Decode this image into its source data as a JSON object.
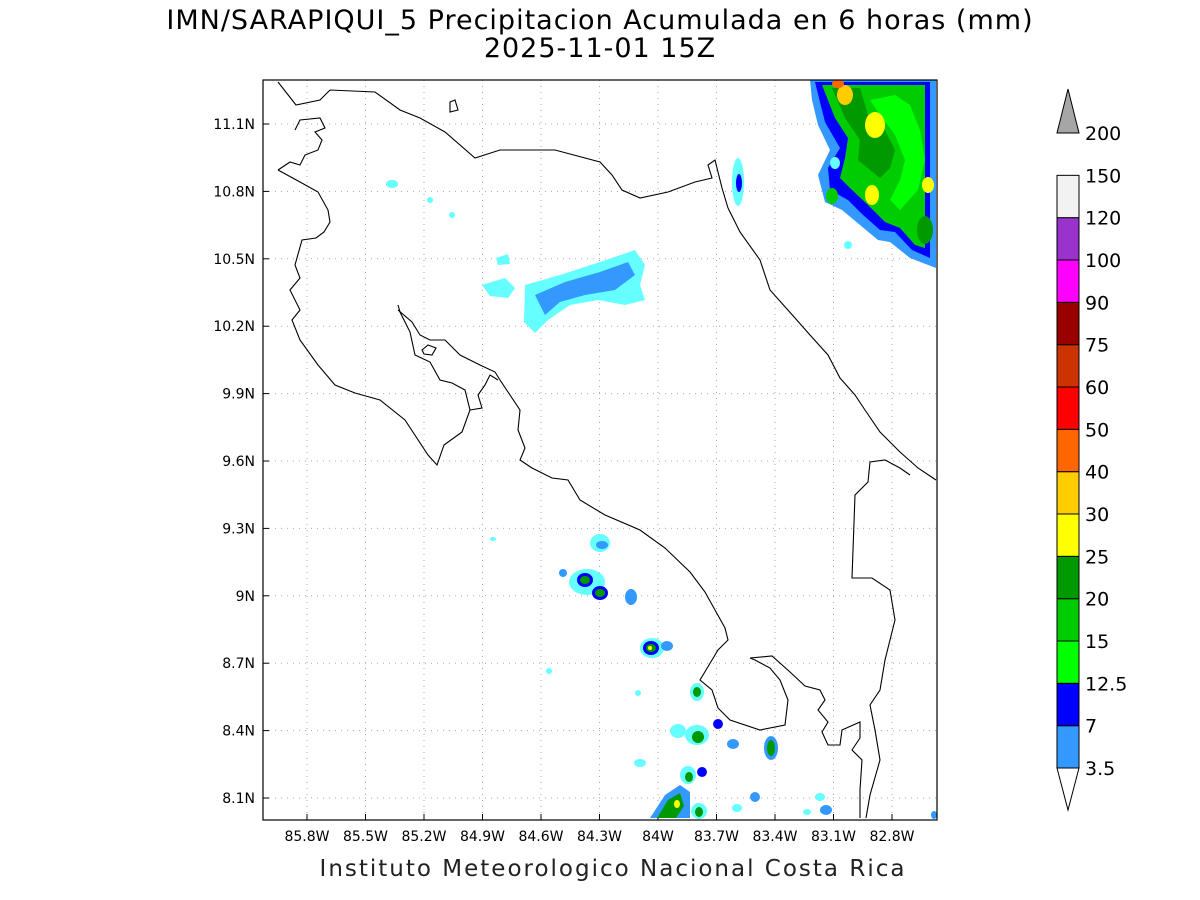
{
  "title": {
    "line1": "IMN/SARAPIQUI_5 Precipitacion Acumulada en 6 horas (mm)",
    "line2": "2025-11-01 15Z"
  },
  "footer": "Instituto Meteorologico Nacional Costa Rica",
  "map": {
    "lon_labels": [
      "85.8W",
      "85.5W",
      "85.2W",
      "84.9W",
      "84.6W",
      "84.3W",
      "84W",
      "83.7W",
      "83.4W",
      "83.1W",
      "82.8W"
    ],
    "lat_labels": [
      "11.1N",
      "10.8N",
      "10.5N",
      "10.2N",
      "9.9N",
      "9.6N",
      "9.3N",
      "9N",
      "8.7N",
      "8.4N",
      "8.1N"
    ]
  },
  "colorbar": {
    "labels": [
      "3.5",
      "7",
      "12.5",
      "15",
      "20",
      "25",
      "30",
      "40",
      "50",
      "60",
      "75",
      "90",
      "100",
      "120",
      "150",
      "200"
    ],
    "colors": [
      "#66ffff",
      "#3399ff",
      "#0000ff",
      "#00ff00",
      "#00cc00",
      "#009900",
      "#ffff00",
      "#ffcc00",
      "#ff6600",
      "#ff0000",
      "#cc3300",
      "#990000",
      "#ff00ff",
      "#9933cc",
      "#f2f2f2",
      "#a6a6a6"
    ]
  }
}
